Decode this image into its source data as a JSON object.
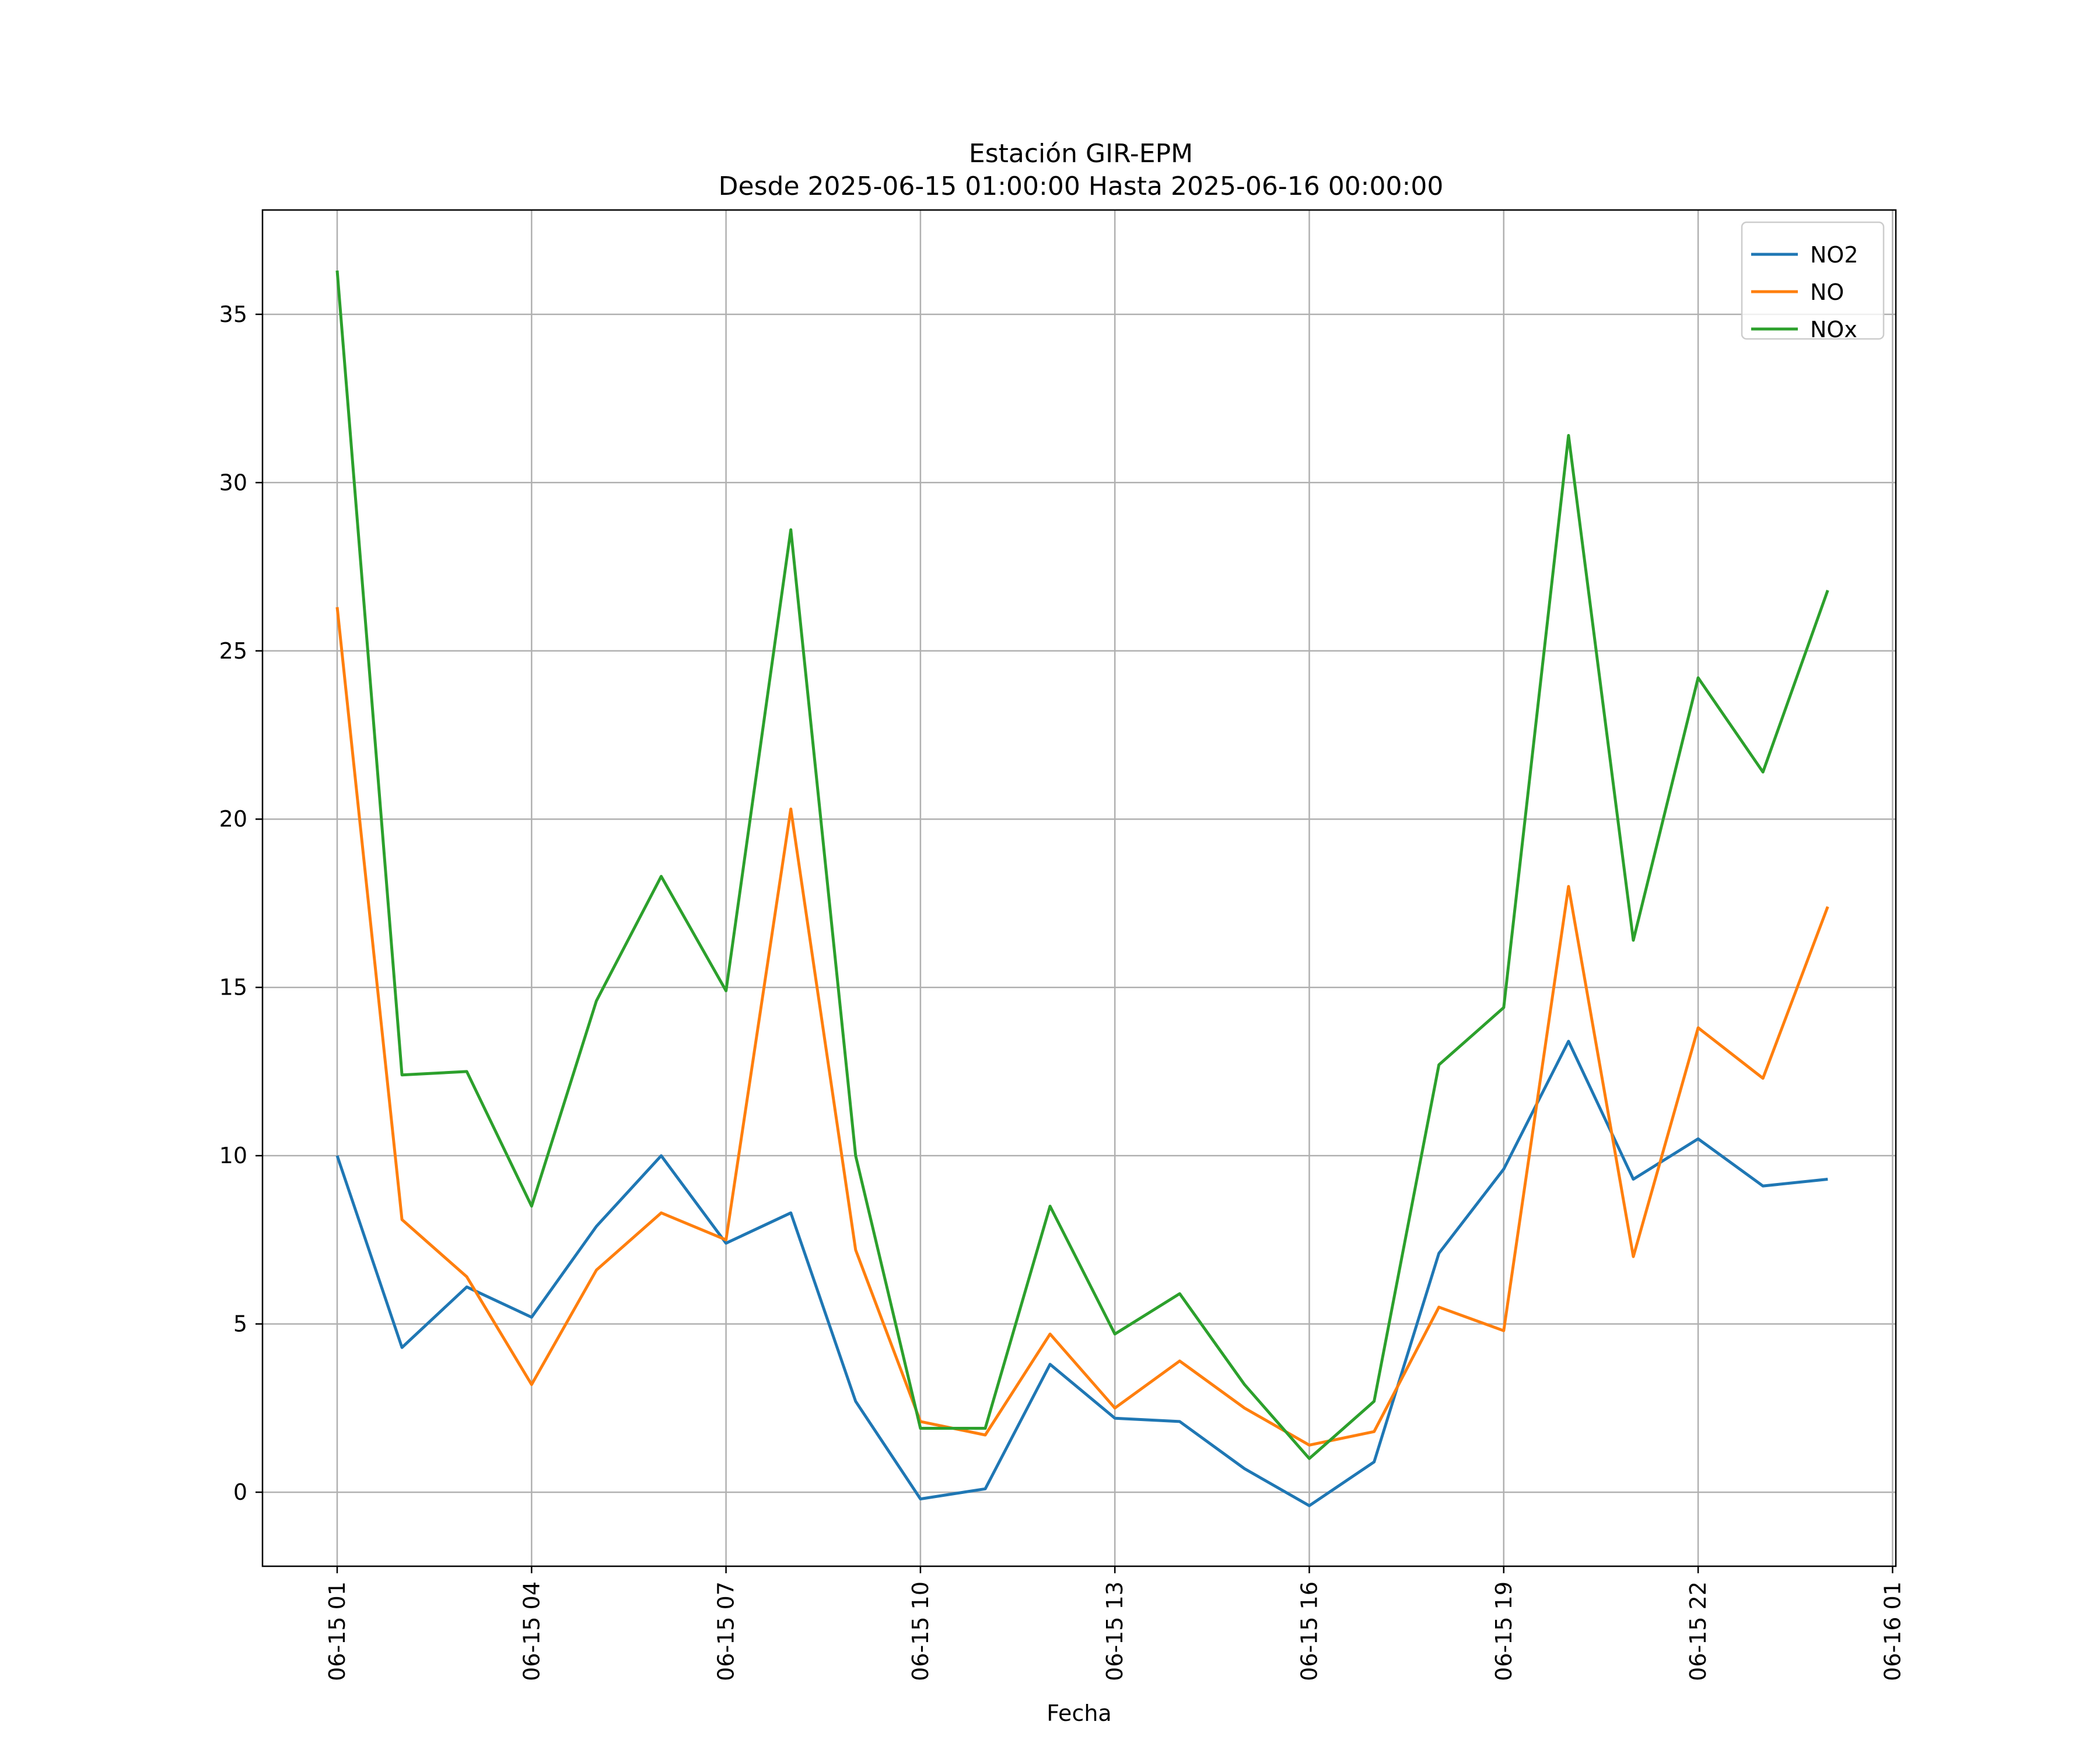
{
  "chart_data": {
    "type": "line",
    "title_line1": "Estación GIR-EPM",
    "title_line2": "Desde 2025-06-15 01:00:00 Hasta 2025-06-16 00:00:00",
    "xlabel": "Fecha",
    "ylabel": "",
    "x": [
      "06-15 01",
      "06-15 02",
      "06-15 03",
      "06-15 04",
      "06-15 05",
      "06-15 06",
      "06-15 07",
      "06-15 08",
      "06-15 09",
      "06-15 10",
      "06-15 11",
      "06-15 12",
      "06-15 13",
      "06-15 14",
      "06-15 15",
      "06-15 16",
      "06-15 17",
      "06-15 18",
      "06-15 19",
      "06-15 20",
      "06-15 21",
      "06-15 22",
      "06-15 23",
      "06-16 00"
    ],
    "x_ticks": [
      "06-15 01",
      "06-15 04",
      "06-15 07",
      "06-15 10",
      "06-15 13",
      "06-15 16",
      "06-15 19",
      "06-15 22",
      "06-16 01"
    ],
    "y_ticks": [
      0,
      5,
      10,
      15,
      20,
      25,
      30,
      35
    ],
    "ylim": [
      -2.2,
      38.1
    ],
    "grid": true,
    "legend_position": "top-right",
    "series": [
      {
        "name": "NO2",
        "color": "#1f77b4",
        "values": [
          10.0,
          4.3,
          6.1,
          5.2,
          7.9,
          10.0,
          7.4,
          8.3,
          2.7,
          -0.2,
          0.1,
          3.8,
          2.2,
          2.1,
          0.7,
          -0.4,
          0.9,
          7.1,
          9.6,
          13.4,
          9.3,
          10.5,
          9.1,
          9.3
        ]
      },
      {
        "name": "NO",
        "color": "#ff7f0e",
        "values": [
          26.3,
          8.1,
          6.4,
          3.2,
          6.6,
          8.3,
          7.5,
          20.3,
          7.2,
          2.1,
          1.7,
          4.7,
          2.5,
          3.9,
          2.5,
          1.4,
          1.8,
          5.5,
          4.8,
          18.0,
          7.0,
          13.8,
          12.3,
          17.4
        ]
      },
      {
        "name": "NOx",
        "color": "#2ca02c",
        "values": [
          36.3,
          12.4,
          12.5,
          8.5,
          14.6,
          18.3,
          14.9,
          28.6,
          10.0,
          1.9,
          1.9,
          8.5,
          4.7,
          5.9,
          3.2,
          1.0,
          2.7,
          12.7,
          14.4,
          31.4,
          16.4,
          24.2,
          21.4,
          26.8
        ]
      }
    ]
  }
}
